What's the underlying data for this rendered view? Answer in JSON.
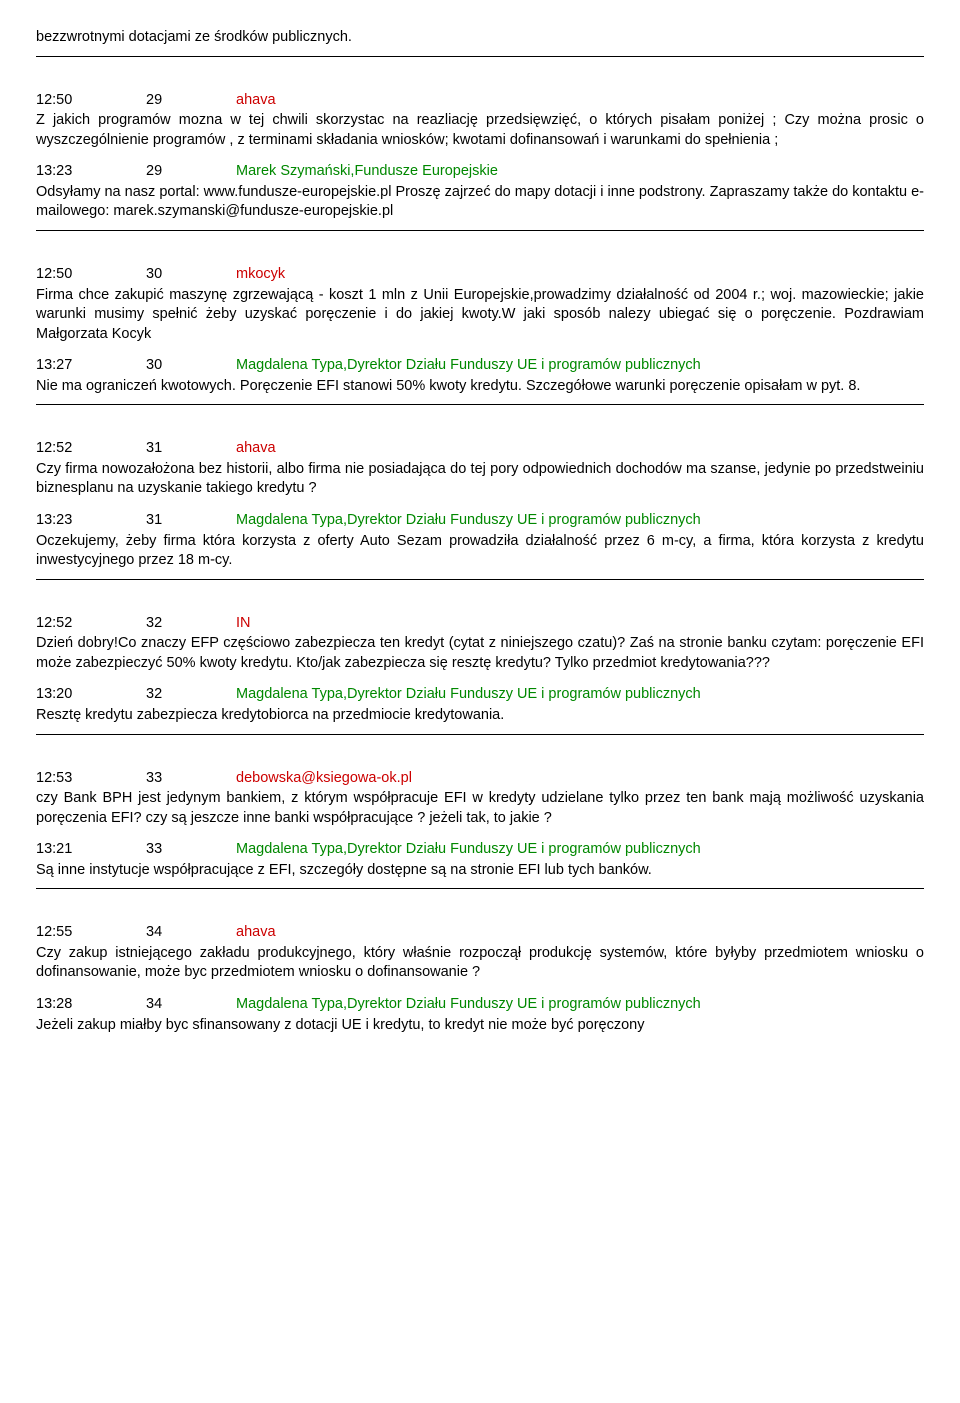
{
  "items": [
    {
      "kind": "orphan",
      "text": "bezzwrotnymi dotacjami ze środków publicznych."
    },
    {
      "kind": "hr"
    },
    {
      "kind": "gap"
    },
    {
      "kind": "qa",
      "q": {
        "time": "12:50",
        "num": "29",
        "author": "ahava",
        "author_color": "red",
        "text": "Z jakich programów mozna w tej chwili skorzystac na reazliację przedsięwzięć, o których pisałam poniżej ; Czy można prosic o wyszczególnienie programów , z terminami składania wniosków; kwotami dofinansowań i warunkami do spełnienia ;"
      },
      "a": {
        "time": "13:23",
        "num": "29",
        "author": "Marek Szymański,Fundusze Europejskie",
        "author_color": "green",
        "text": "Odsyłamy na nasz portal: www.fundusze-europejskie.pl  Proszę zajrzeć do mapy dotacji i inne podstrony. Zapraszamy także do kontaktu e-mailowego: marek.szymanski@fundusze-europejskie.pl"
      }
    },
    {
      "kind": "hr"
    },
    {
      "kind": "gap"
    },
    {
      "kind": "qa",
      "q": {
        "time": "12:50",
        "num": "30",
        "author": "mkocyk",
        "author_color": "red",
        "text": "Firma chce zakupić maszynę zgrzewającą - koszt 1 mln z Unii Europejskie,prowadzimy działalność od 2004 r.; woj. mazowieckie; jakie warunki musimy spełnić żeby uzyskać poręczenie i do jakiej kwoty.W jaki sposób nalezy ubiegać się o poręczenie. Pozdrawiam Małgorzata Kocyk"
      },
      "a": {
        "time": "13:27",
        "num": "30",
        "author": "Magdalena Typa,Dyrektor Działu Funduszy UE i programów publicznych",
        "author_color": "green",
        "text": "Nie ma ograniczeń kwotowych. Poręczenie EFI stanowi 50% kwoty kredytu. Szczegółowe warunki poręczenie opisałam w pyt. 8."
      }
    },
    {
      "kind": "hr"
    },
    {
      "kind": "gap"
    },
    {
      "kind": "qa",
      "q": {
        "time": "12:52",
        "num": "31",
        "author": "ahava",
        "author_color": "red",
        "text": "Czy firma nowozałożona bez historii, albo firma nie posiadająca do tej pory odpowiednich dochodów ma szanse, jedynie po przedstweiniu biznesplanu na uzyskanie takiego kredytu ?"
      },
      "a": {
        "time": "13:23",
        "num": "31",
        "author": "Magdalena Typa,Dyrektor Działu Funduszy UE i programów publicznych",
        "author_color": "green",
        "text": "Oczekujemy, żeby firma która korzysta z oferty Auto Sezam prowadziła działalność przez 6 m-cy, a firma, która korzysta z kredytu inwestycyjnego przez 18 m-cy."
      }
    },
    {
      "kind": "hr"
    },
    {
      "kind": "gap"
    },
    {
      "kind": "qa",
      "q": {
        "time": "12:52",
        "num": "32",
        "author": "IN",
        "author_color": "red",
        "text": "Dzień dobry!Co znaczy EFP częściowo zabezpiecza ten kredyt (cytat z niniejszego czatu)? Zaś na stronie banku czytam: poręczenie EFI może zabezpieczyć 50% kwoty kredytu. Kto/jak zabezpiecza się resztę kredytu? Tylko przedmiot kredytowania???"
      },
      "a": {
        "time": "13:20",
        "num": "32",
        "author": "Magdalena Typa,Dyrektor Działu Funduszy UE i programów publicznych",
        "author_color": "green",
        "text": "Resztę kredytu zabezpiecza kredytobiorca na przedmiocie kredytowania."
      }
    },
    {
      "kind": "hr"
    },
    {
      "kind": "gap"
    },
    {
      "kind": "qa",
      "q": {
        "time": "12:53",
        "num": "33",
        "author": "debowska@ksiegowa-ok.pl",
        "author_color": "red",
        "text": "czy Bank BPH jest jedynym bankiem, z którym współpracuje EFI w kredyty udzielane tylko przez ten bank mają możliwość uzyskania poręczenia EFI? czy są jeszcze inne banki współpracujące ? jeżeli tak, to jakie ?"
      },
      "a": {
        "time": "13:21",
        "num": "33",
        "author": "Magdalena Typa,Dyrektor Działu Funduszy UE i programów publicznych",
        "author_color": "green",
        "text": "Są inne instytucje współpracujące z EFI, szczegóły dostępne są na stronie EFI lub tych banków."
      }
    },
    {
      "kind": "hr"
    },
    {
      "kind": "gap"
    },
    {
      "kind": "qa",
      "q": {
        "time": "12:55",
        "num": "34",
        "author": "ahava",
        "author_color": "red",
        "text": "Czy zakup istniejącego zakładu produkcyjnego, który właśnie rozpoczął produkcję systemów, które byłyby przedmiotem wniosku o dofinansowanie, może byc przedmiotem wniosku o dofinansowanie ?"
      },
      "a": {
        "time": "13:28",
        "num": "34",
        "author": "Magdalena Typa,Dyrektor Działu Funduszy UE i programów publicznych",
        "author_color": "green",
        "text": "Jeżeli zakup miałby byc sfinansowany z dotacji UE i kredytu, to kredyt nie może być poręczony"
      }
    }
  ]
}
